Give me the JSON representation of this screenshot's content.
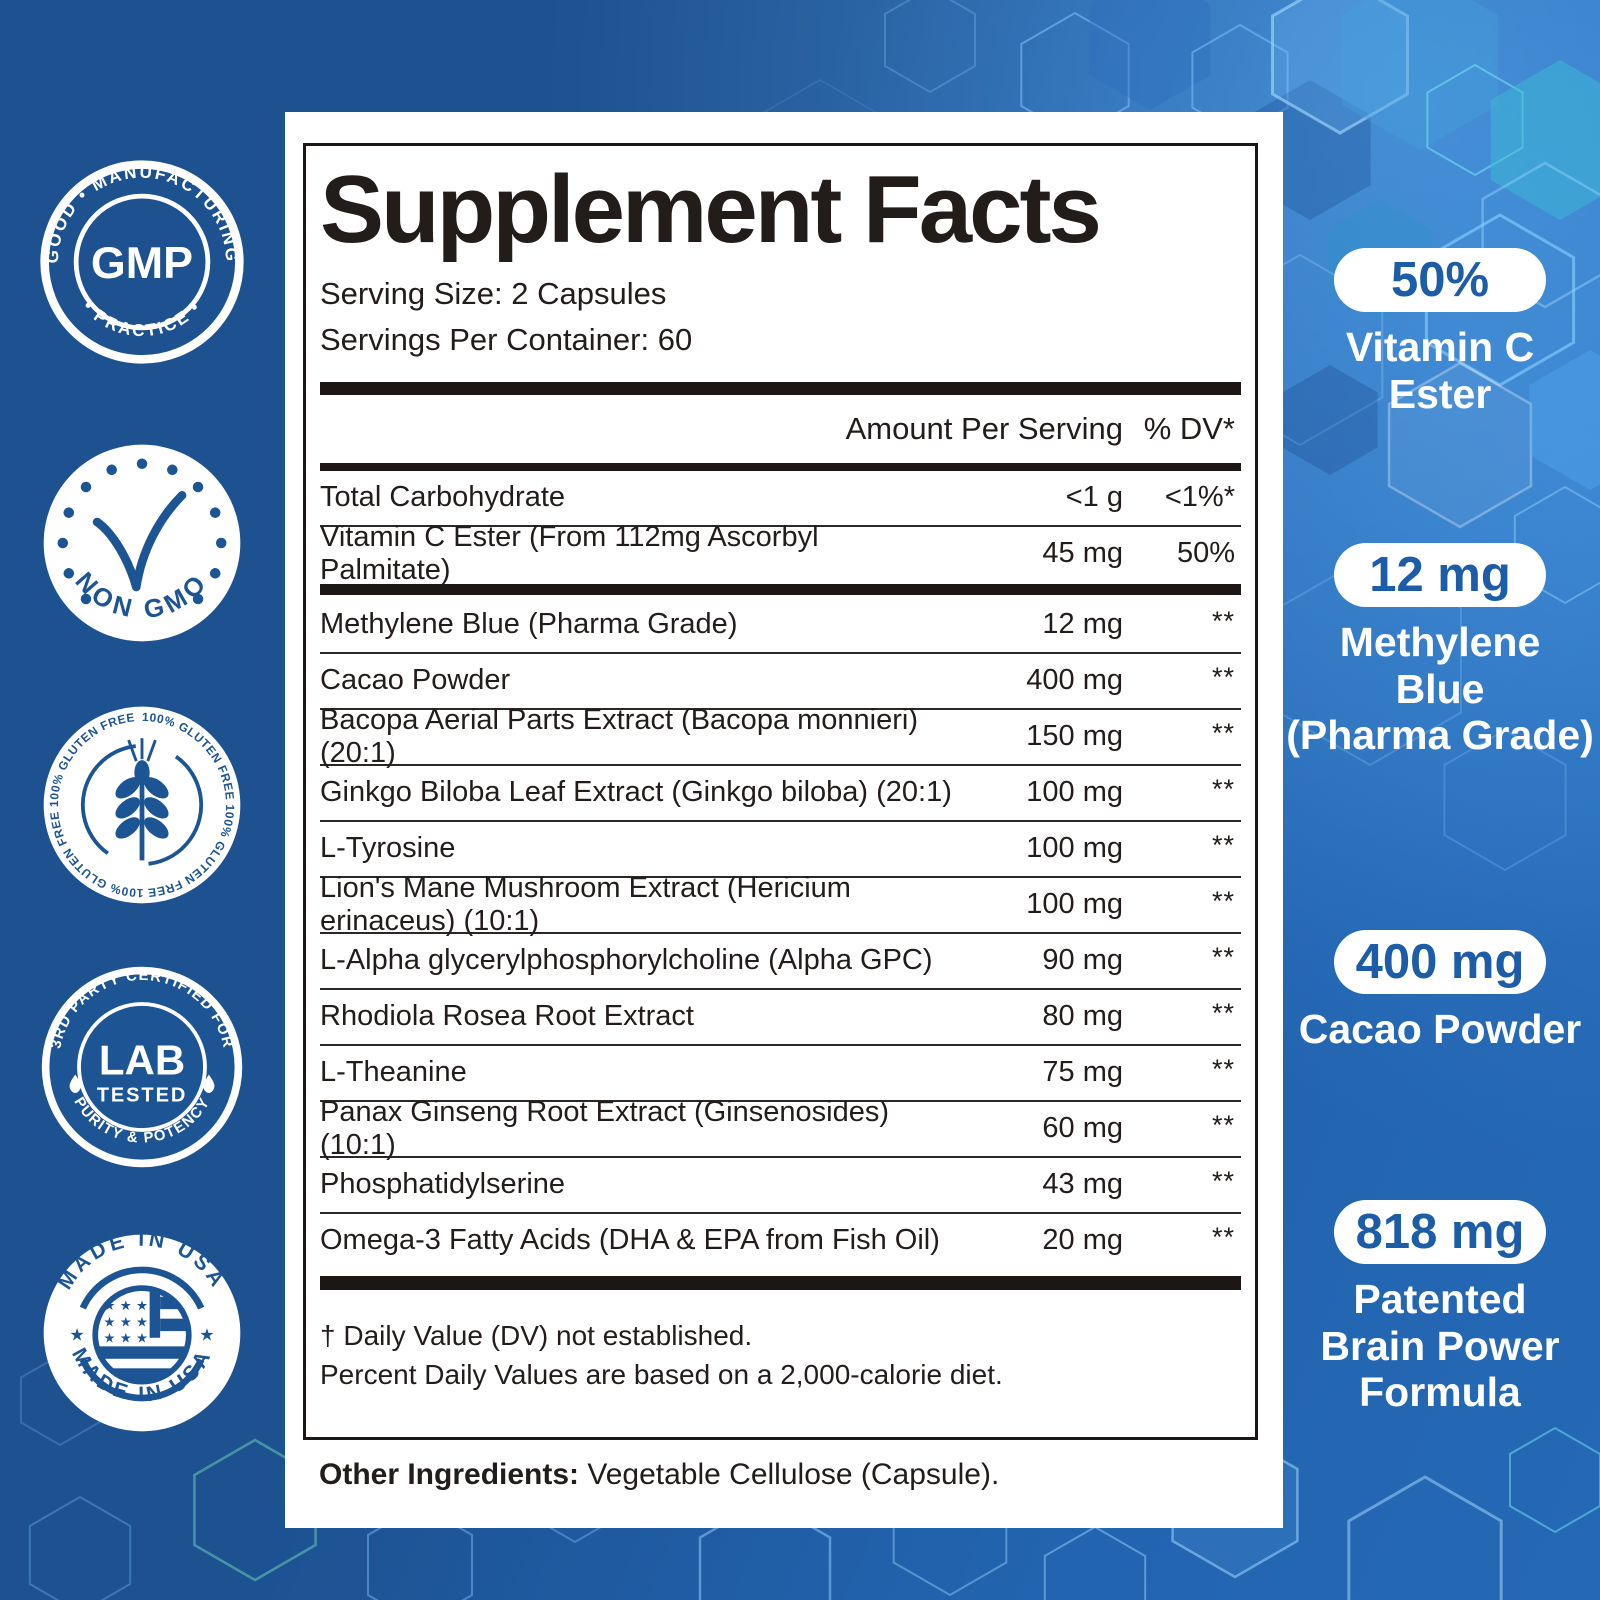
{
  "colors": {
    "badge_blue": "#1d5494",
    "pill_text_blue": "#1d5ca6",
    "panel_text": "#221c1a",
    "bg_left_blue": "#1d5190",
    "bg_right_blue": "#2569b6",
    "teal_accent": "#3fc0d4"
  },
  "badges": [
    {
      "id": "gmp",
      "arc_top": "GOOD • MANUFACTURING",
      "arc_bottom": "• PRACTICE •",
      "center": "GMP"
    },
    {
      "id": "non-gmo",
      "label": "NON GMO"
    },
    {
      "id": "gluten-free",
      "arc_text": "100% GLUTEN FREE   100% GLUTEN FREE   100% GLUTEN FREE   100% GLUTEN FREE"
    },
    {
      "id": "lab-tested",
      "arc_top": "3RD PARTY CERTIFIED FOR",
      "arc_bottom": "PURITY & POTENCY",
      "center_line1": "LAB",
      "center_line2": "TESTED"
    },
    {
      "id": "made-in-usa",
      "arc_top": "MADE IN USA",
      "arc_bottom": "MADE IN USA"
    }
  ],
  "panel": {
    "title": "Supplement Facts",
    "serving_size": "Serving Size: 2 Capsules",
    "servings_per_container": "Servings Per Container: 60",
    "col_amount": "Amount Per Serving",
    "col_dv": "% DV*",
    "rows_top": [
      {
        "name": "Total Carbohydrate",
        "amount": "<1 g",
        "dv": "<1%*"
      },
      {
        "name": "Vitamin C Ester (From 112mg Ascorbyl Palmitate)",
        "amount": "45 mg",
        "dv": "50%"
      }
    ],
    "rows_main": [
      {
        "name": "Methylene Blue (Pharma Grade)",
        "amount": "12 mg",
        "dv": "**"
      },
      {
        "name": "Cacao Powder",
        "amount": "400 mg",
        "dv": "**"
      },
      {
        "name": "Bacopa Aerial Parts Extract (Bacopa monnieri) (20:1)",
        "amount": "150 mg",
        "dv": "**"
      },
      {
        "name": "Ginkgo Biloba Leaf Extract (Ginkgo biloba) (20:1)",
        "amount": "100 mg",
        "dv": "**"
      },
      {
        "name": "L-Tyrosine",
        "amount": "100 mg",
        "dv": "**"
      },
      {
        "name": "Lion's Mane Mushroom Extract (Hericium erinaceus) (10:1)",
        "amount": "100 mg",
        "dv": "**"
      },
      {
        "name": "L-Alpha glycerylphosphorylcholine (Alpha GPC)",
        "amount": "90 mg",
        "dv": "**"
      },
      {
        "name": "Rhodiola Rosea Root Extract",
        "amount": "80 mg",
        "dv": "**"
      },
      {
        "name": "L-Theanine",
        "amount": "75 mg",
        "dv": "**"
      },
      {
        "name": "Panax Ginseng Root Extract (Ginsenosides) (10:1)",
        "amount": "60 mg",
        "dv": "**"
      },
      {
        "name": "Phosphatidylserine",
        "amount": "43 mg",
        "dv": "**"
      },
      {
        "name": "Omega-3 Fatty Acids (DHA & EPA from Fish Oil)",
        "amount": "20 mg",
        "dv": "**"
      }
    ],
    "footnote_1": "†  Daily Value (DV) not established.",
    "footnote_2": "Percent Daily Values are based on a 2,000-calorie diet.",
    "other_ingredients_label": "Other Ingredients:",
    "other_ingredients_value": " Vegetable Cellulose (Capsule)."
  },
  "stats": [
    {
      "value": "50%",
      "label_lines": [
        "Vitamin C",
        "Ester"
      ]
    },
    {
      "value": "12 mg",
      "label_lines": [
        "Methylene",
        "Blue",
        "(Pharma Grade)"
      ]
    },
    {
      "value": "400 mg",
      "label_lines": [
        "Cacao Powder"
      ]
    },
    {
      "value": "818 mg",
      "label_lines": [
        "Patented",
        "Brain Power",
        "Formula"
      ]
    }
  ]
}
